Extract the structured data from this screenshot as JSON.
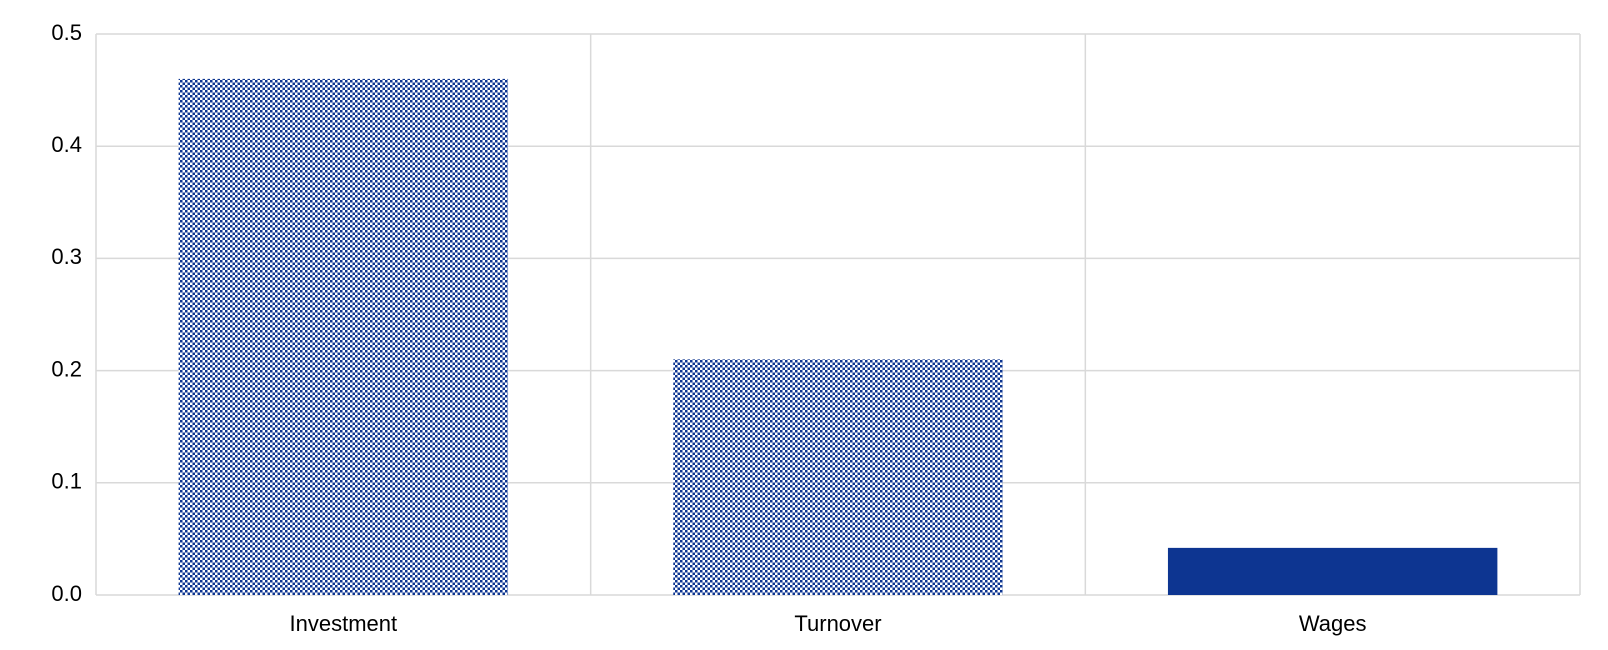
{
  "chart_data": {
    "type": "bar",
    "categories": [
      "Investment",
      "Turnover",
      "Wages"
    ],
    "values": [
      0.46,
      0.21,
      0.042
    ],
    "fills": [
      "dotted",
      "dotted",
      "solid"
    ],
    "color": "#0d3591",
    "ylim": [
      0,
      0.5
    ],
    "yticks": [
      {
        "value": 0,
        "label": "0.0"
      },
      0.1,
      0.2,
      0.3,
      0.4,
      0.5
    ],
    "grid": true
  }
}
